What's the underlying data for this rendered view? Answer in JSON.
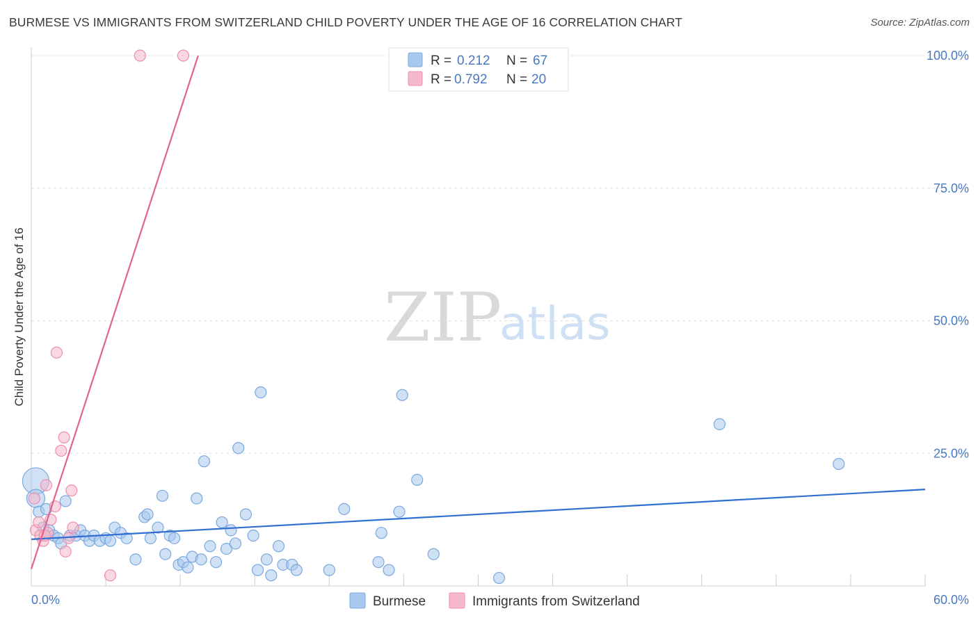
{
  "title": "BURMESE VS IMMIGRANTS FROM SWITZERLAND CHILD POVERTY UNDER THE AGE OF 16 CORRELATION CHART",
  "source": "Source: ZipAtlas.com",
  "watermark": {
    "zip": "ZIP",
    "atlas": "atlas"
  },
  "legend": {
    "rows": [
      {
        "r_label": "R =",
        "r_value": "0.212",
        "n_label": "N =",
        "n_value": "67"
      },
      {
        "r_label": "R =",
        "r_value": "0.792",
        "n_label": "N =",
        "n_value": "20"
      }
    ]
  },
  "bottom_legend": [
    "Burmese",
    "Immigrants from Switzerland"
  ],
  "chart_data": {
    "type": "scatter",
    "title": "BURMESE VS IMMIGRANTS FROM SWITZERLAND CHILD POVERTY UNDER THE AGE OF 16 CORRELATION CHART",
    "xlabel": "",
    "ylabel": "Child Poverty Under the Age of 16",
    "xlim": [
      0,
      60
    ],
    "ylim": [
      0,
      100
    ],
    "x_tick_labels": [
      "0.0%",
      "60.0%"
    ],
    "y_tick_labels": [
      "25.0%",
      "50.0%",
      "75.0%",
      "100.0%"
    ],
    "y_ticks": [
      25,
      50,
      75,
      100
    ],
    "series": [
      {
        "name": "Burmese",
        "color": "#a9c8ee",
        "stroke": "#7aa8de",
        "trend_color": "#2f6fd0",
        "trend": [
          [
            0,
            8.8
          ],
          [
            60,
            18.2
          ]
        ],
        "points": [
          [
            0.3,
            19.8,
            3
          ],
          [
            0.3,
            16.5,
            2
          ],
          [
            0.5,
            14,
            1
          ],
          [
            0.8,
            11,
            1
          ],
          [
            1,
            14.5,
            1
          ],
          [
            1.2,
            10.5,
            1
          ],
          [
            1.5,
            9.5,
            1
          ],
          [
            1.8,
            9,
            1
          ],
          [
            2,
            8,
            1
          ],
          [
            2.3,
            16,
            1
          ],
          [
            2.6,
            9.5,
            1
          ],
          [
            3,
            9.5,
            1
          ],
          [
            3.3,
            10.5,
            1
          ],
          [
            3.6,
            9.5,
            1
          ],
          [
            3.9,
            8.5,
            1
          ],
          [
            4.2,
            9.5,
            1
          ],
          [
            4.6,
            8.5,
            1
          ],
          [
            5,
            9,
            1
          ],
          [
            5.3,
            8.5,
            1
          ],
          [
            5.6,
            11,
            1
          ],
          [
            6,
            10,
            1
          ],
          [
            6.4,
            9,
            1
          ],
          [
            7,
            5,
            1
          ],
          [
            7.6,
            13,
            1
          ],
          [
            7.8,
            13.5,
            1
          ],
          [
            8,
            9,
            1
          ],
          [
            8.5,
            11,
            1
          ],
          [
            8.8,
            17,
            1
          ],
          [
            9,
            6,
            1
          ],
          [
            9.3,
            9.5,
            1
          ],
          [
            9.6,
            9,
            1
          ],
          [
            9.9,
            4,
            1
          ],
          [
            10.2,
            4.5,
            1
          ],
          [
            10.5,
            3.5,
            1
          ],
          [
            10.8,
            5.5,
            1
          ],
          [
            11.1,
            16.5,
            1
          ],
          [
            11.4,
            5,
            1
          ],
          [
            11.6,
            23.5,
            1
          ],
          [
            12,
            7.5,
            1
          ],
          [
            12.4,
            4.5,
            1
          ],
          [
            12.8,
            12,
            1
          ],
          [
            13.1,
            7,
            1
          ],
          [
            13.4,
            10.5,
            1
          ],
          [
            13.7,
            8,
            1
          ],
          [
            13.9,
            26,
            1
          ],
          [
            14.4,
            13.5,
            1
          ],
          [
            14.9,
            9.5,
            1
          ],
          [
            15.2,
            3,
            1
          ],
          [
            15.4,
            36.5,
            1
          ],
          [
            15.8,
            5,
            1
          ],
          [
            16.1,
            2,
            1
          ],
          [
            16.6,
            7.5,
            1
          ],
          [
            16.9,
            4,
            1
          ],
          [
            17.5,
            4,
            1
          ],
          [
            17.8,
            3,
            1
          ],
          [
            20,
            3,
            1
          ],
          [
            21,
            14.5,
            1
          ],
          [
            23.3,
            4.5,
            1
          ],
          [
            23.5,
            10,
            1
          ],
          [
            24,
            3,
            1
          ],
          [
            24.7,
            14,
            1
          ],
          [
            24.9,
            36,
            1
          ],
          [
            25.9,
            20,
            1
          ],
          [
            27,
            6,
            1
          ],
          [
            31.4,
            1.5,
            1
          ],
          [
            46.2,
            30.5,
            1
          ],
          [
            54.2,
            23,
            1
          ]
        ]
      },
      {
        "name": "Immigrants from Switzerland",
        "color": "#f6b8cb",
        "stroke": "#ec8fae",
        "trend_color": "#e2628f",
        "trend": [
          [
            0,
            3.2
          ],
          [
            11.2,
            100
          ]
        ],
        "points": [
          [
            0.2,
            16.5,
            1
          ],
          [
            0.3,
            10.5,
            1
          ],
          [
            0.5,
            12,
            1
          ],
          [
            0.6,
            9.5,
            1
          ],
          [
            0.8,
            8.5,
            1
          ],
          [
            1,
            19,
            1
          ],
          [
            1.1,
            10,
            1
          ],
          [
            1.3,
            12.5,
            1
          ],
          [
            1.6,
            15,
            1
          ],
          [
            1.7,
            44,
            1
          ],
          [
            2,
            25.5,
            1
          ],
          [
            2.2,
            28,
            1
          ],
          [
            2.3,
            6.5,
            1
          ],
          [
            2.5,
            9,
            1
          ],
          [
            2.7,
            18,
            1
          ],
          [
            2.8,
            11,
            1
          ],
          [
            5.3,
            2,
            1
          ],
          [
            7.3,
            100,
            1
          ],
          [
            10.2,
            100,
            1
          ],
          [
            0.9,
            9.5,
            1
          ]
        ]
      }
    ]
  }
}
